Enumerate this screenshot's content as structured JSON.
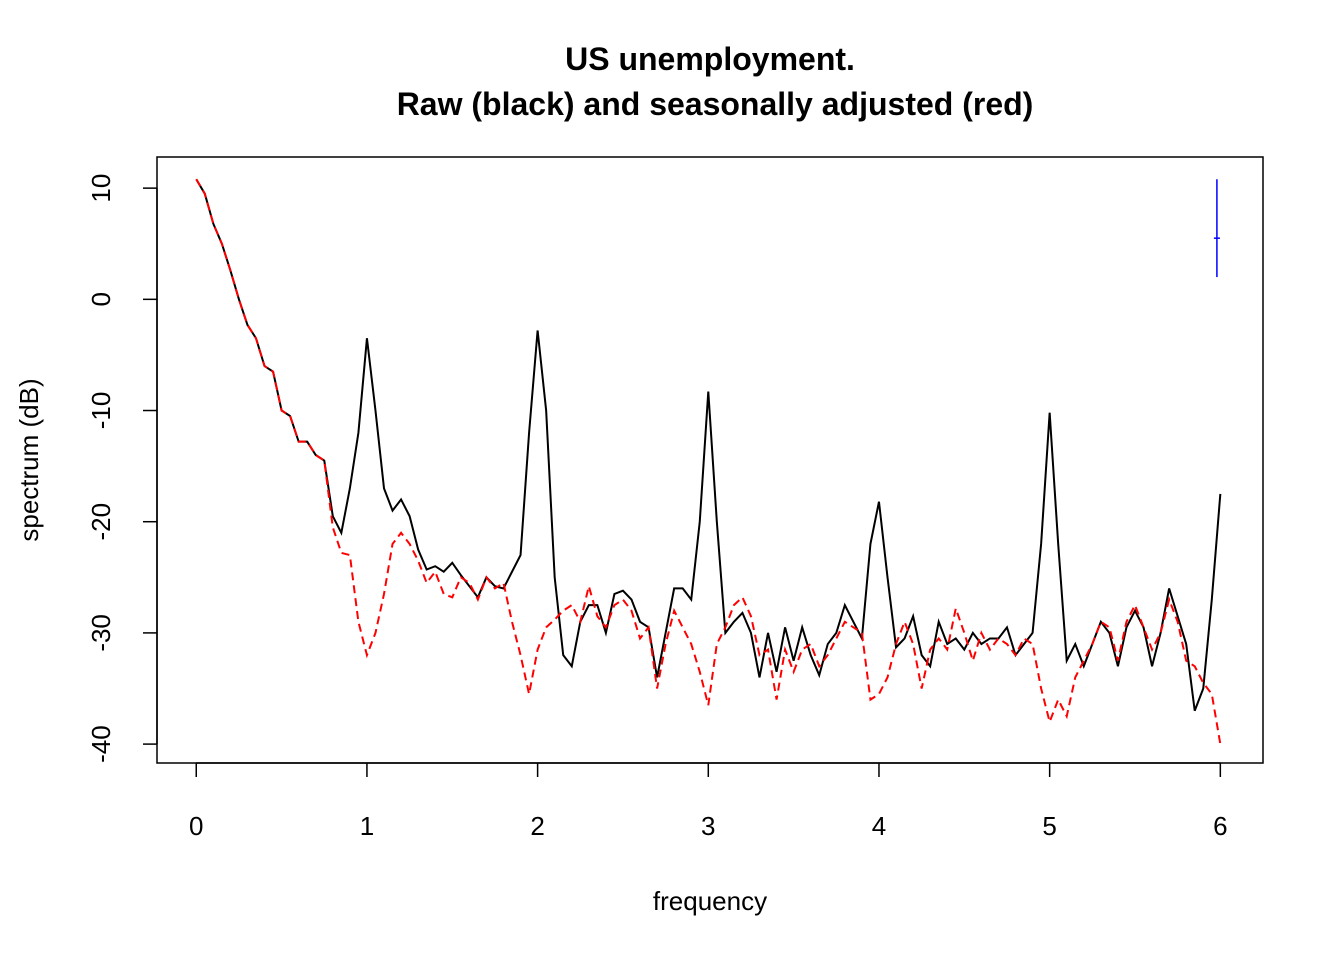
{
  "chart_data": {
    "type": "line",
    "title": "US unemployment.",
    "subtitle": "Raw (black) and seasonally adjusted (red)",
    "xlabel": "frequency",
    "ylabel": "spectrum (dB)",
    "x": [
      0,
      0.05,
      0.1,
      0.15,
      0.2,
      0.25,
      0.3,
      0.35,
      0.4,
      0.45,
      0.5,
      0.55,
      0.6,
      0.65,
      0.7,
      0.75,
      0.8,
      0.85,
      0.9,
      0.95,
      1,
      1.05,
      1.1,
      1.15,
      1.2,
      1.25,
      1.3,
      1.35,
      1.4,
      1.45,
      1.5,
      1.55,
      1.6,
      1.65,
      1.7,
      1.75,
      1.8,
      1.85,
      1.9,
      1.95,
      2,
      2.05,
      2.1,
      2.15,
      2.2,
      2.25,
      2.3,
      2.35,
      2.4,
      2.45,
      2.5,
      2.55,
      2.6,
      2.65,
      2.7,
      2.75,
      2.8,
      2.85,
      2.9,
      2.95,
      3,
      3.05,
      3.1,
      3.15,
      3.2,
      3.25,
      3.3,
      3.35,
      3.4,
      3.45,
      3.5,
      3.55,
      3.6,
      3.65,
      3.7,
      3.75,
      3.8,
      3.85,
      3.9,
      3.95,
      4,
      4.05,
      4.1,
      4.15,
      4.2,
      4.25,
      4.3,
      4.35,
      4.4,
      4.45,
      4.5,
      4.55,
      4.6,
      4.65,
      4.7,
      4.75,
      4.8,
      4.85,
      4.9,
      4.95,
      5,
      5.05,
      5.1,
      5.15,
      5.2,
      5.25,
      5.3,
      5.35,
      5.4,
      5.45,
      5.5,
      5.55,
      5.6,
      5.65,
      5.7,
      5.75,
      5.8,
      5.85,
      5.9,
      5.95,
      6
    ],
    "series": [
      {
        "color": "#000000",
        "dash": false,
        "values": [
          10.8,
          9.5,
          6.8,
          5.0,
          2.6,
          0.0,
          -2.3,
          -3.5,
          -6.0,
          -6.5,
          -10.0,
          -10.5,
          -12.8,
          -12.8,
          -14.0,
          -14.5,
          -19.5,
          -21.0,
          -17.0,
          -12.0,
          -3.5,
          -10.0,
          -17.0,
          -19.0,
          -18.0,
          -19.5,
          -22.5,
          -24.3,
          -24.0,
          -24.5,
          -23.7,
          -24.8,
          -25.8,
          -26.8,
          -25.0,
          -25.8,
          -26.0,
          -24.5,
          -23.0,
          -12.0,
          -2.8,
          -10.0,
          -25.0,
          -32.0,
          -33.0,
          -29.0,
          -27.5,
          -27.5,
          -30.0,
          -26.5,
          -26.2,
          -27.0,
          -29.0,
          -29.5,
          -34.0,
          -30.0,
          -26.0,
          -26.0,
          -27.0,
          -20.0,
          -8.3,
          -20.0,
          -30.0,
          -29.0,
          -28.2,
          -30.0,
          -34.0,
          -30.0,
          -33.5,
          -29.5,
          -32.5,
          -29.5,
          -32.0,
          -33.8,
          -31.0,
          -30.0,
          -27.5,
          -29.0,
          -30.5,
          -22.0,
          -18.2,
          -25.0,
          -31.3,
          -30.5,
          -28.5,
          -32.0,
          -33.0,
          -29.0,
          -31.0,
          -30.5,
          -31.5,
          -30.0,
          -31.0,
          -30.5,
          -30.5,
          -29.5,
          -32.0,
          -31.0,
          -30.0,
          -22.0,
          -10.2,
          -22.0,
          -32.5,
          -31.0,
          -33.0,
          -31.0,
          -29.0,
          -30.0,
          -33.0,
          -29.5,
          -28.0,
          -29.5,
          -33.0,
          -30.0,
          -26.0,
          -28.5,
          -31.0,
          -37.0,
          -35.0,
          -27.0,
          -17.5
        ]
      },
      {
        "color": "#ff0000",
        "dash": true,
        "values": [
          10.8,
          9.5,
          6.8,
          5.0,
          2.6,
          0.0,
          -2.3,
          -3.5,
          -6.0,
          -6.5,
          -10.0,
          -10.5,
          -12.8,
          -12.8,
          -14.0,
          -14.5,
          -20.5,
          -22.8,
          -23.0,
          -29.0,
          -32.0,
          -30.0,
          -26.5,
          -22.0,
          -21.0,
          -22.0,
          -23.5,
          -25.5,
          -24.5,
          -26.5,
          -26.8,
          -25.0,
          -25.5,
          -27.0,
          -25.0,
          -26.0,
          -25.5,
          -29.0,
          -32.0,
          -35.5,
          -31.5,
          -29.5,
          -28.8,
          -28.0,
          -27.5,
          -29.0,
          -25.8,
          -28.5,
          -29.5,
          -27.5,
          -27.0,
          -28.0,
          -30.5,
          -29.5,
          -35.0,
          -31.0,
          -28.0,
          -29.5,
          -31.0,
          -33.5,
          -36.5,
          -31.0,
          -29.5,
          -27.5,
          -26.8,
          -28.5,
          -32.0,
          -31.5,
          -36.0,
          -31.5,
          -33.5,
          -31.5,
          -31.0,
          -33.0,
          -32.0,
          -30.5,
          -29.0,
          -29.5,
          -30.0,
          -36.0,
          -35.5,
          -34.0,
          -31.0,
          -29.0,
          -31.0,
          -35.0,
          -31.5,
          -30.5,
          -31.5,
          -27.8,
          -30.0,
          -32.5,
          -30.0,
          -31.5,
          -30.5,
          -31.0,
          -32.0,
          -30.5,
          -31.0,
          -35.0,
          -38.0,
          -36.0,
          -37.5,
          -34.0,
          -32.5,
          -31.0,
          -29.0,
          -29.5,
          -32.5,
          -29.0,
          -27.5,
          -29.5,
          -31.5,
          -30.0,
          -27.0,
          -29.0,
          -32.5,
          -33.0,
          -34.5,
          -35.5,
          -40.0
        ]
      }
    ],
    "ci_bar": {
      "x": 5.98,
      "center": 5.5,
      "lower": 2.0,
      "upper": 10.8,
      "color": "#0000ff"
    },
    "xlim": [
      -0.23,
      6.25
    ],
    "ylim": [
      -41.7,
      12.8
    ],
    "xticks": [
      0,
      1,
      2,
      3,
      4,
      5,
      6
    ],
    "yticks": [
      -40,
      -30,
      -20,
      -10,
      0,
      10
    ]
  }
}
